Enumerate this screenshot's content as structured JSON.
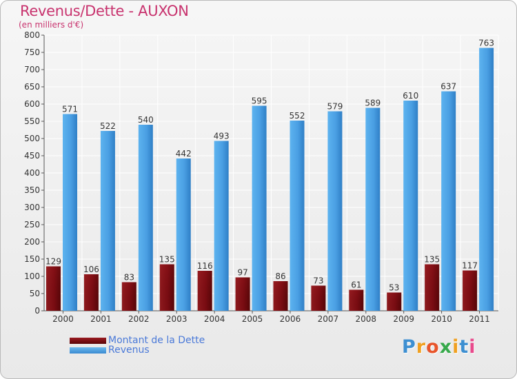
{
  "title": "Revenus/Dette - AUXON",
  "subtitle": "(en milliers d'€)",
  "chart_data": {
    "type": "bar",
    "categories": [
      "2000",
      "2001",
      "2002",
      "2003",
      "2004",
      "2005",
      "2006",
      "2007",
      "2008",
      "2009",
      "2010",
      "2011"
    ],
    "series": [
      {
        "name": "Montant de la Dette",
        "values": [
          129,
          106,
          83,
          135,
          116,
          97,
          86,
          73,
          61,
          53,
          135,
          117
        ],
        "color": "#7a0c12"
      },
      {
        "name": "Revenus",
        "values": [
          571,
          522,
          540,
          442,
          493,
          595,
          552,
          579,
          589,
          610,
          637,
          763
        ],
        "color": "#4a9fe3"
      }
    ],
    "ylim": [
      0,
      800
    ],
    "yticks": [
      0,
      50,
      100,
      150,
      200,
      250,
      300,
      350,
      400,
      450,
      500,
      550,
      600,
      650,
      700,
      750,
      800
    ],
    "grid": true
  },
  "legend": {
    "debt_label": "Montant de la Dette",
    "revenue_label": "Revenus"
  },
  "logo": {
    "letters": [
      "P",
      "r",
      "o",
      "x",
      "i",
      "t",
      "i"
    ],
    "colors": [
      "#3d8fd1",
      "#f0a020",
      "#e8552b",
      "#37a94b",
      "#f0a020",
      "#3d8fd1",
      "#e84a8c"
    ]
  }
}
